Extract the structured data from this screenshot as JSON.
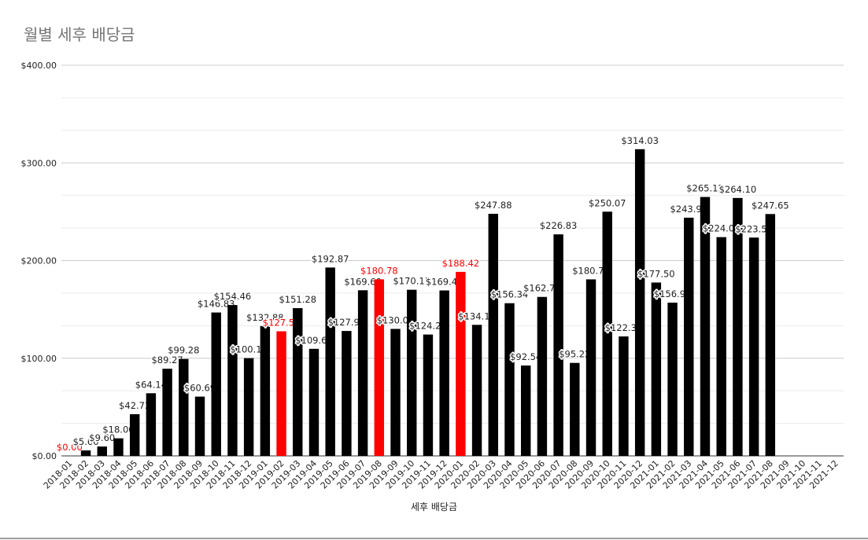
{
  "chart_data": {
    "type": "bar",
    "title": "월별 세후 배당금",
    "xlabel": "세후 배당금",
    "ylabel": "",
    "ylim": [
      0,
      400
    ],
    "y_ticks": [
      "$0.00",
      "$100.00",
      "$200.00",
      "$300.00",
      "$400.00"
    ],
    "grid": true,
    "colors": {
      "default": "#000000",
      "highlight": "#ff0000",
      "grid_major": "#cccccc",
      "grid_minor": "#ebebeb"
    },
    "categories": [
      "2018-01",
      "2018-02",
      "2018-03",
      "2018-04",
      "2018-05",
      "2018-06",
      "2018-07",
      "2018-08",
      "2018-09",
      "2018-10",
      "2018-11",
      "2018-12",
      "2019-01",
      "2019-02",
      "2019-03",
      "2019-04",
      "2019-05",
      "2019-06",
      "2019-07",
      "2019-08",
      "2019-09",
      "2019-10",
      "2019-11",
      "2019-12",
      "2020-01",
      "2020-02",
      "2020-03",
      "2020-04",
      "2020-05",
      "2020-06",
      "2020-07",
      "2020-08",
      "2020-09",
      "2020-10",
      "2020-11",
      "2020-12",
      "2021-01",
      "2021-02",
      "2021-03",
      "2021-04",
      "2021-05",
      "2021-06",
      "2021-07",
      "2021-08",
      "2021-09",
      "2021-10",
      "2021-11",
      "2021-12"
    ],
    "values": [
      0,
      5.6,
      9.6,
      18.0,
      42.73,
      64.14,
      89.27,
      99.28,
      60.69,
      146.83,
      154.46,
      100.11,
      132.88,
      127.59,
      151.28,
      109.62,
      192.87,
      127.91,
      169.6,
      180.78,
      130.03,
      170.11,
      124.27,
      169.41,
      188.42,
      134.18,
      247.88,
      156.34,
      92.54,
      162.78,
      226.83,
      95.22,
      180.75,
      250.07,
      122.33,
      314.03,
      177.5,
      156.92,
      243.92,
      265.12,
      224.01,
      264.1,
      223.54,
      247.65,
      null,
      null,
      null,
      null
    ],
    "labels": [
      "$0.00",
      "$5.60",
      "$9.60",
      "$18.00",
      "$42.73",
      "$64.14",
      "$89.27",
      "$99.28",
      "$60.69",
      "$146.83",
      "$154.46",
      "$100.11",
      "$132.88",
      "$127.59",
      "$151.28",
      "$109.62",
      "$192.87",
      "$127.91",
      "$169.60",
      "$180.78",
      "$130.03",
      "$170.11",
      "$124.27",
      "$169.41",
      "$188.42",
      "$134.18",
      "$247.88",
      "$156.34",
      "$92.54",
      "$162.78",
      "$226.83",
      "$95.22",
      "$180.75",
      "$250.07",
      "$122.33",
      "$314.03",
      "$177.50",
      "$156.92",
      "$243.92",
      "$265.12",
      "$224.01",
      "$264.10",
      "$223.54",
      "$247.65",
      "",
      "",
      "",
      ""
    ],
    "highlighted": [
      "2018-01",
      "2019-02",
      "2019-08",
      "2020-01"
    ]
  }
}
